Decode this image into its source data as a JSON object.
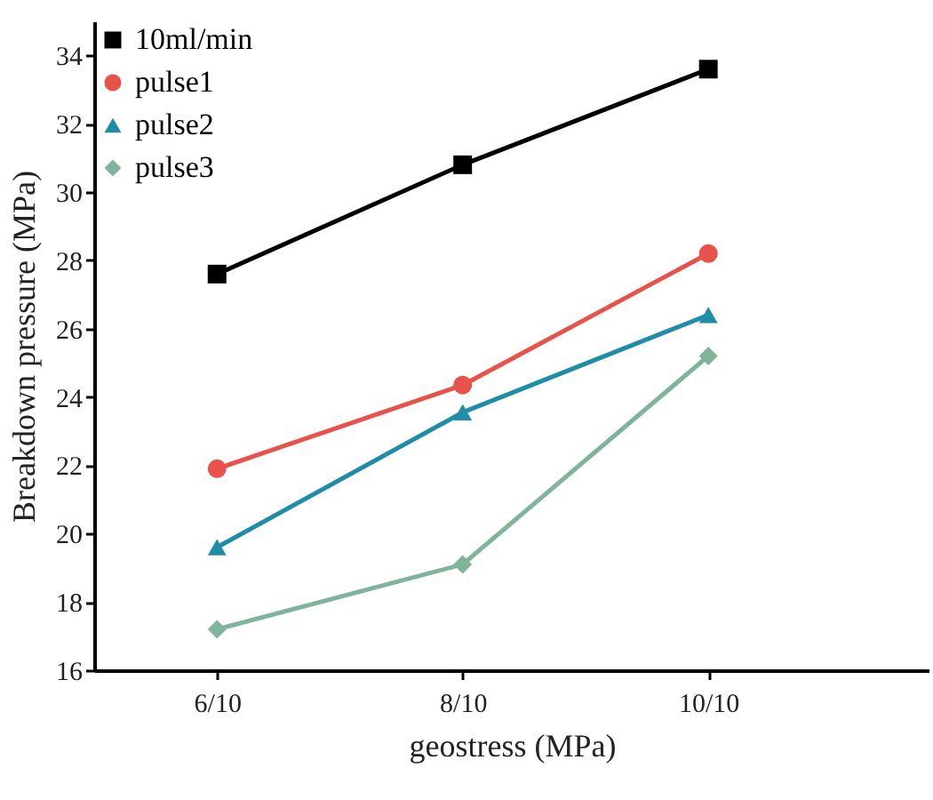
{
  "chart_data": {
    "type": "line",
    "xlabel": "geostress (MPa)",
    "ylabel": "Breakdown pressure (MPa)",
    "categories": [
      "6/10",
      "8/10",
      "10/10"
    ],
    "series": [
      {
        "name": "10ml/min",
        "color": "#000000",
        "marker": "square",
        "values": [
          27.6,
          30.8,
          33.6
        ]
      },
      {
        "name": "pulse1",
        "color": "#e8524a",
        "marker": "circle",
        "values": [
          21.9,
          24.35,
          28.2
        ]
      },
      {
        "name": "pulse2",
        "color": "#1f8ca8",
        "marker": "triangle",
        "values": [
          19.6,
          23.55,
          26.4
        ]
      },
      {
        "name": "pulse3",
        "color": "#7fb39a",
        "marker": "diamond",
        "values": [
          17.2,
          19.1,
          25.2
        ]
      }
    ],
    "ylim": [
      16,
      35
    ],
    "yticks": [
      16,
      18,
      20,
      22,
      24,
      26,
      28,
      30,
      32,
      34
    ],
    "grid": false,
    "legend": "top left",
    "line_style": "solid"
  }
}
